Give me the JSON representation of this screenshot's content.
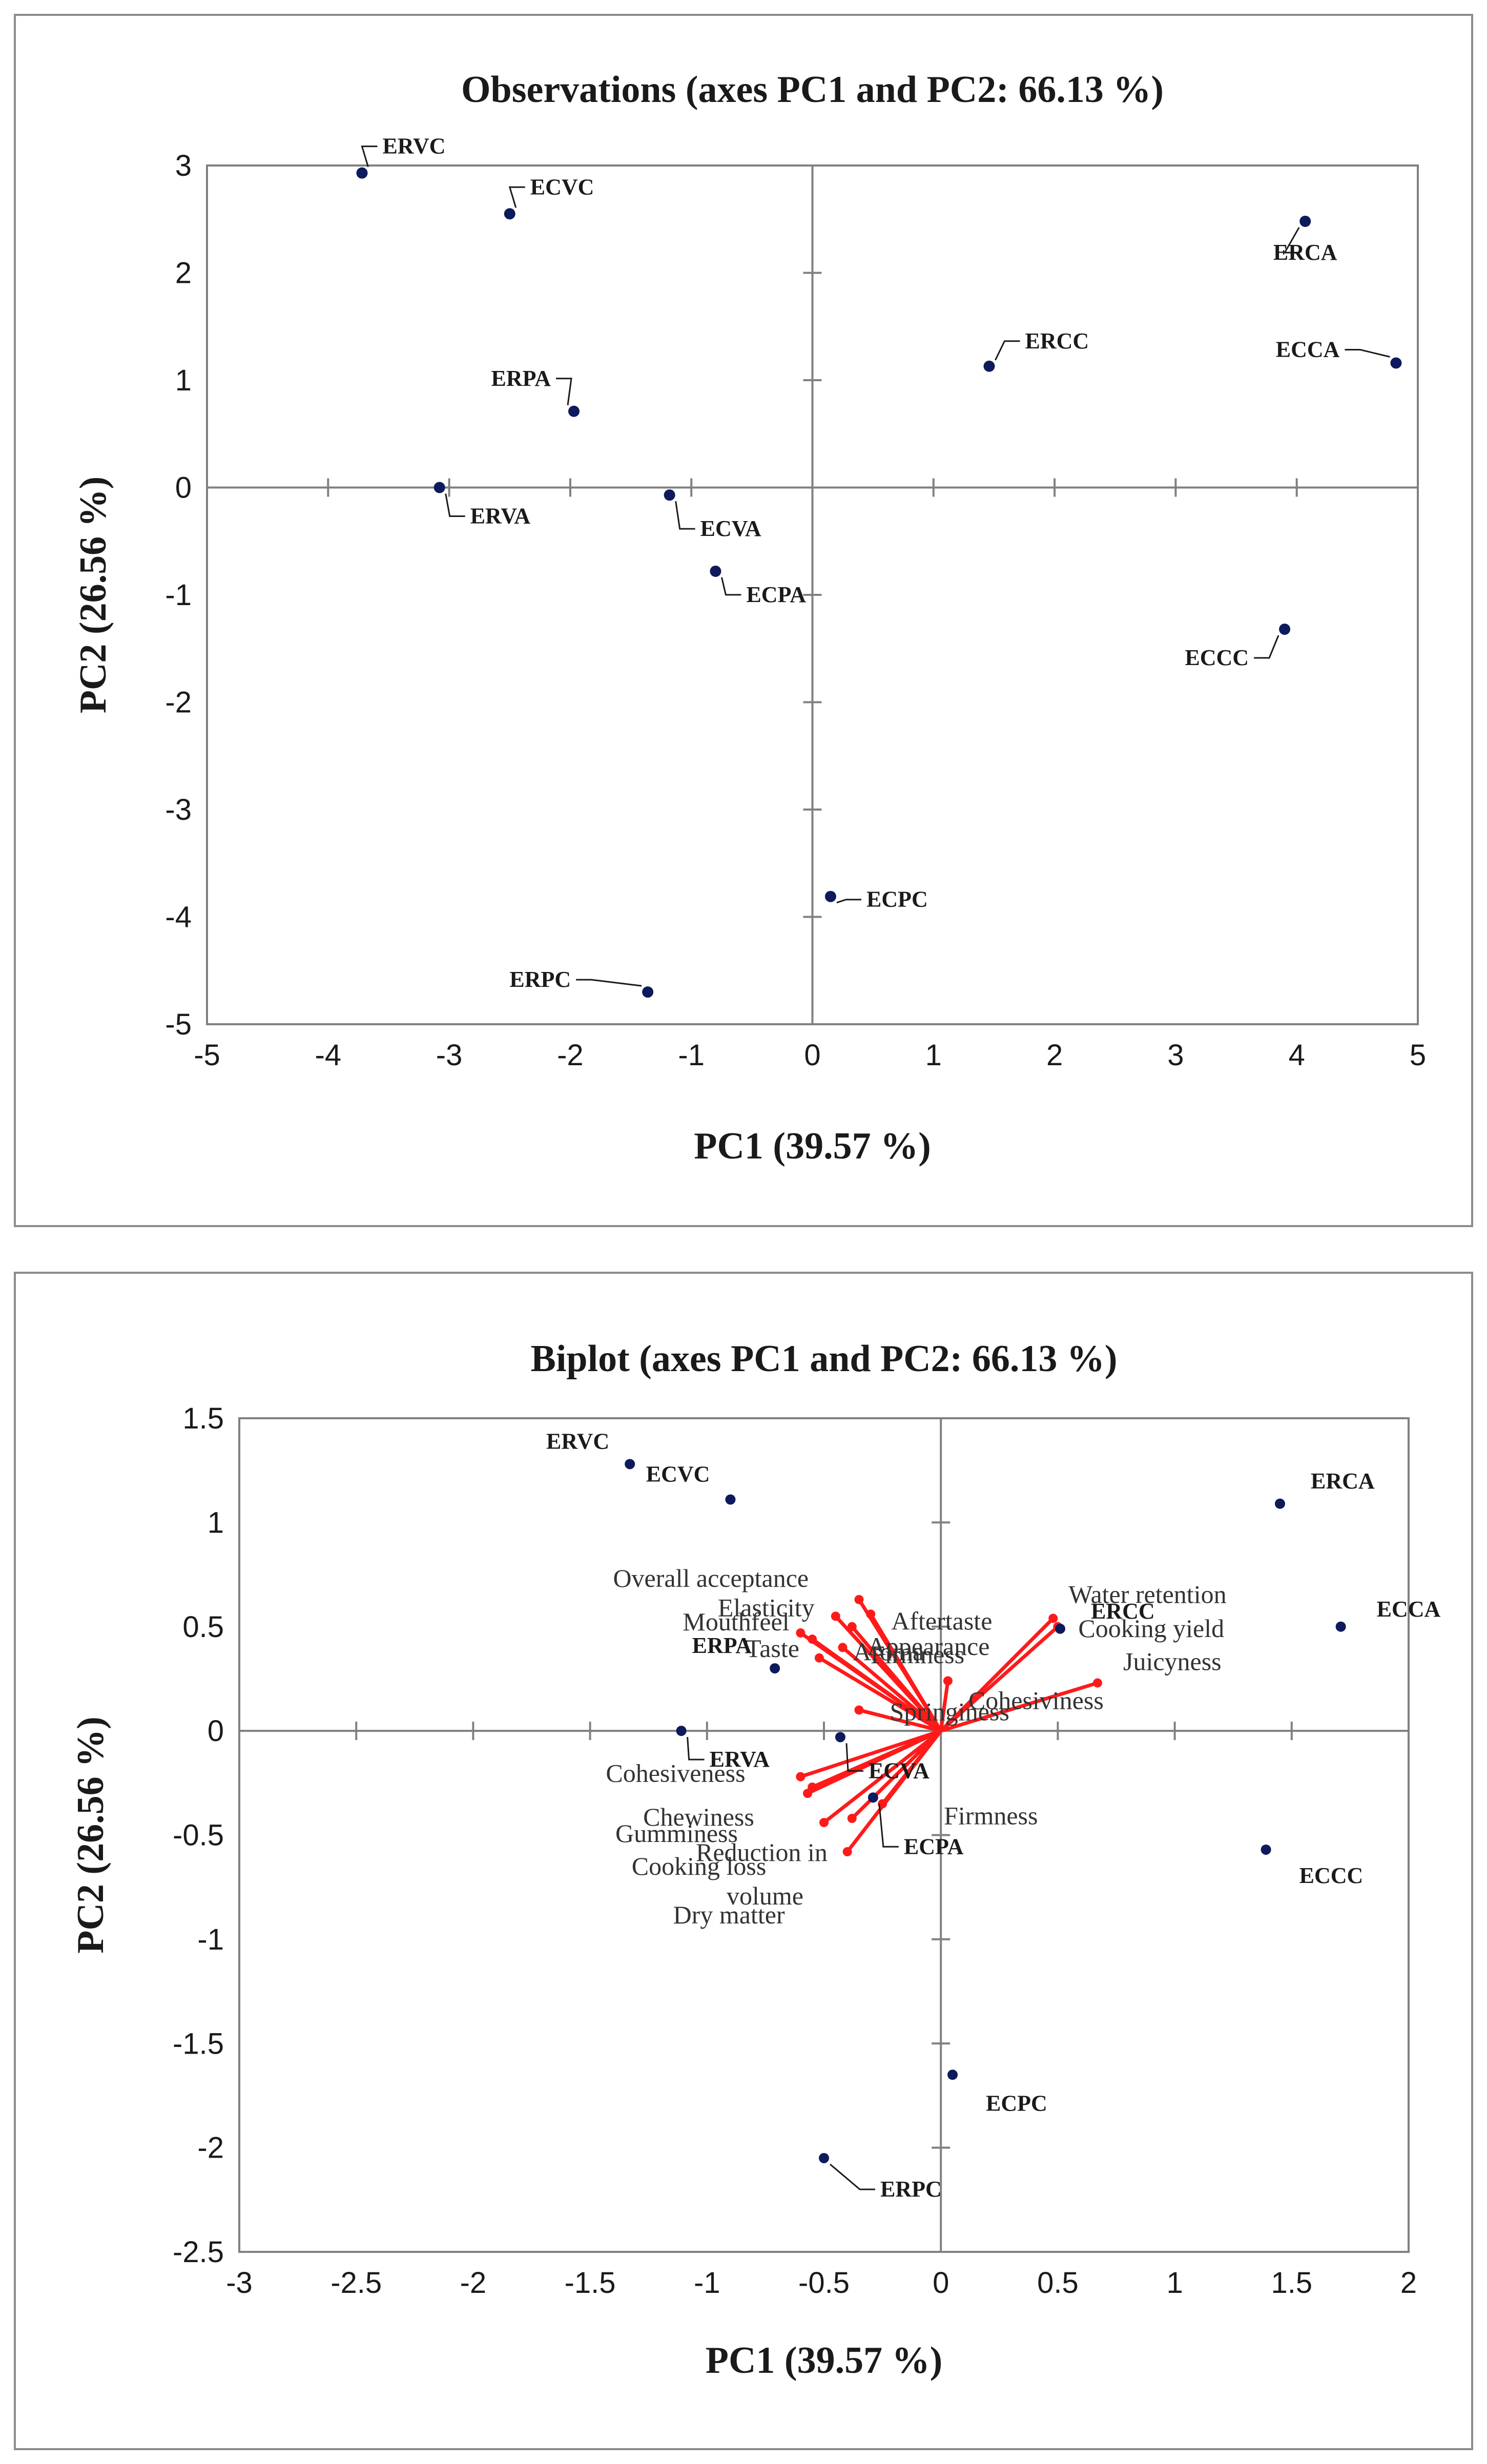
{
  "chart_data": [
    {
      "type": "scatter",
      "title": "Observations (axes PC1 and PC2: 66.13 %)",
      "xlabel": "PC1 (39.57 %)",
      "ylabel": "PC2 (26.56 %)",
      "xlim": [
        -5,
        5
      ],
      "ylim": [
        -5,
        3
      ],
      "xticks": [
        -5,
        -4,
        -3,
        -2,
        -1,
        0,
        1,
        2,
        3,
        4,
        5
      ],
      "yticks": [
        -5,
        -4,
        -3,
        -2,
        -1,
        0,
        1,
        2,
        3
      ],
      "grid": false,
      "points": [
        {
          "label": "ERVC",
          "x": -3.72,
          "y": 2.93
        },
        {
          "label": "ECVC",
          "x": -2.5,
          "y": 2.55
        },
        {
          "label": "ERPA",
          "x": -1.97,
          "y": 0.71
        },
        {
          "label": "ERVA",
          "x": -3.08,
          "y": 0.0
        },
        {
          "label": "ECVA",
          "x": -1.18,
          "y": -0.07
        },
        {
          "label": "ECPA",
          "x": -0.8,
          "y": -0.78
        },
        {
          "label": "ERCC",
          "x": 1.46,
          "y": 1.13
        },
        {
          "label": "ERCA",
          "x": 4.07,
          "y": 2.48
        },
        {
          "label": "ECCA",
          "x": 4.82,
          "y": 1.16
        },
        {
          "label": "ECCC",
          "x": 3.9,
          "y": -1.32
        },
        {
          "label": "ECPC",
          "x": 0.15,
          "y": -3.81
        },
        {
          "label": "ERPC",
          "x": -1.36,
          "y": -4.7
        }
      ]
    },
    {
      "type": "scatter",
      "title": "Biplot (axes PC1 and PC2: 66.13 %)",
      "xlabel": "PC1 (39.57 %)",
      "ylabel": "PC2 (26.56 %)",
      "xlim": [
        -3,
        2
      ],
      "ylim": [
        -2.5,
        1.5
      ],
      "xticks": [
        -3,
        -2.5,
        -2,
        -1.5,
        -1,
        -0.5,
        0,
        0.5,
        1,
        1.5,
        2
      ],
      "yticks": [
        -2.5,
        -2,
        -1.5,
        -1,
        -0.5,
        0,
        0.5,
        1,
        1.5
      ],
      "grid": false,
      "points": [
        {
          "label": "ERVC",
          "x": -1.33,
          "y": 1.28
        },
        {
          "label": "ECVC",
          "x": -0.9,
          "y": 1.11
        },
        {
          "label": "ERPA",
          "x": -0.71,
          "y": 0.3
        },
        {
          "label": "ERVA",
          "x": -1.11,
          "y": 0.0
        },
        {
          "label": "ECVA",
          "x": -0.43,
          "y": -0.03
        },
        {
          "label": "ECPA",
          "x": -0.29,
          "y": -0.32
        },
        {
          "label": "ERCC",
          "x": 0.51,
          "y": 0.49
        },
        {
          "label": "ERCA",
          "x": 1.45,
          "y": 1.09
        },
        {
          "label": "ECCA",
          "x": 1.71,
          "y": 0.5
        },
        {
          "label": "ECCC",
          "x": 1.39,
          "y": -0.57
        },
        {
          "label": "ECPC",
          "x": 0.05,
          "y": -1.65
        },
        {
          "label": "ERPC",
          "x": -0.5,
          "y": -2.05
        }
      ],
      "vectors": [
        {
          "label": "Overall acceptance",
          "x": -0.35,
          "y": 0.63
        },
        {
          "label": "Elasticity",
          "x": -0.45,
          "y": 0.55
        },
        {
          "label": "Mouthfeel",
          "x": -0.6,
          "y": 0.47
        },
        {
          "label": "Taste",
          "x": -0.55,
          "y": 0.44
        },
        {
          "label": "Aftertaste",
          "x": -0.3,
          "y": 0.56
        },
        {
          "label": "Appearance",
          "x": -0.38,
          "y": 0.5
        },
        {
          "label": "Aroma",
          "x": -0.42,
          "y": 0.4
        },
        {
          "label": "Firmness",
          "x": -0.52,
          "y": 0.35
        },
        {
          "label": "Cohesiviness",
          "x": 0.03,
          "y": 0.24
        },
        {
          "label": "Springiness",
          "x": -0.35,
          "y": 0.1
        },
        {
          "label": "Water retention",
          "x": 0.48,
          "y": 0.54
        },
        {
          "label": "Cooking yield",
          "x": 0.5,
          "y": 0.5
        },
        {
          "label": "Juicyness",
          "x": 0.67,
          "y": 0.23
        },
        {
          "label": "Cohesiveness",
          "x": -0.6,
          "y": -0.22
        },
        {
          "label": "Chewiness",
          "x": -0.55,
          "y": -0.27
        },
        {
          "label": "Gumminess",
          "x": -0.57,
          "y": -0.3
        },
        {
          "label": "Reduction in volume",
          "x": -0.5,
          "y": -0.44
        },
        {
          "label": "Cooking loss",
          "x": -0.38,
          "y": -0.42
        },
        {
          "label": "Dry matter",
          "x": -0.4,
          "y": -0.58
        },
        {
          "label": "Firmness",
          "x": -0.25,
          "y": -0.35
        }
      ]
    }
  ]
}
